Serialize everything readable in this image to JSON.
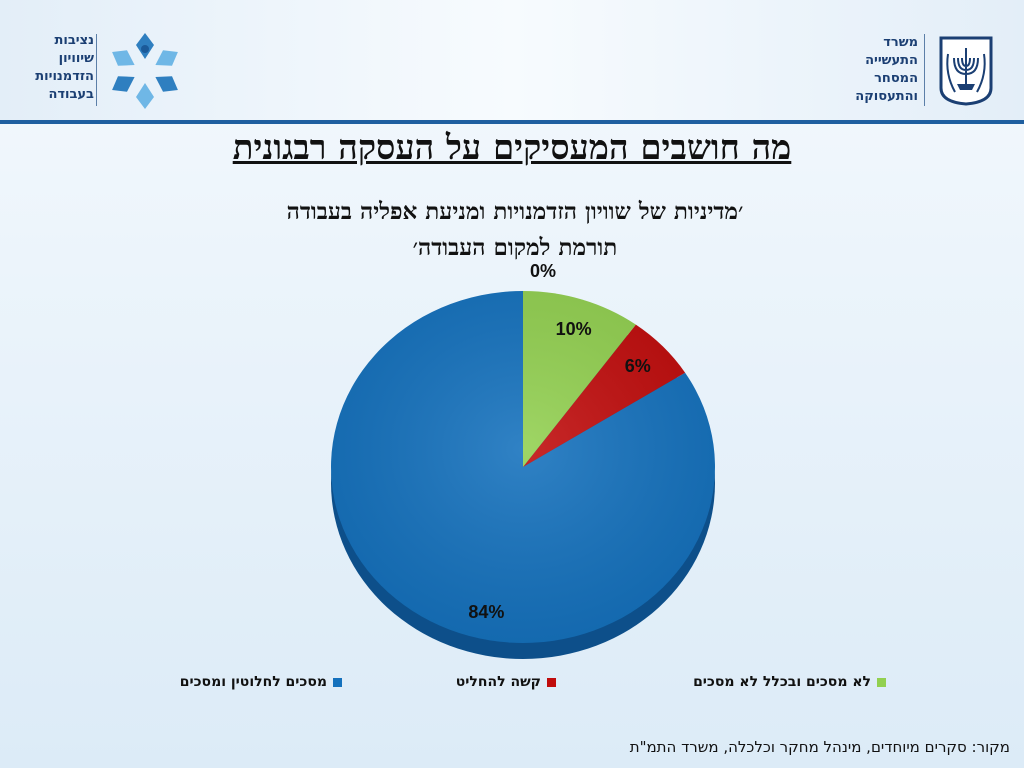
{
  "header": {
    "ministry_lines": [
      "משרד",
      "התעשייה",
      "המסחר",
      "והתעסוקה"
    ],
    "commission_lines": [
      "נציבות",
      "שיוויון",
      "הזדמנויות",
      "בעבודה"
    ]
  },
  "colors": {
    "accent": "#1f5fa0",
    "blue": "#1471bd",
    "red": "#c00c0c",
    "green": "#92d050"
  },
  "chart_data": {
    "type": "pie",
    "title": "מה חושבים המעסיקים על העסקה רבגונית",
    "subtitle_lines": [
      "׳מדיניות של שוויון הזדמנויות ומניעת אפליה בעבודה",
      "תורמת למקום העבודה׳"
    ],
    "slices": [
      {
        "name": "מסכים לחלוטין ומסכים",
        "value": 84,
        "label": "84%",
        "color": "#1471bd"
      },
      {
        "name": "קשה להחליט",
        "value": 6,
        "label": "6%",
        "color": "#c00c0c"
      },
      {
        "name": "לא מסכים ובכלל לא מסכים",
        "value": 10,
        "label": "10%",
        "color": "#92d050"
      },
      {
        "name": "",
        "value": 0,
        "label": "0%",
        "color": "#1471bd"
      }
    ],
    "legend": [
      {
        "name": "מסכים לחלוטין ומסכים",
        "color": "#1471bd"
      },
      {
        "name": "קשה להחליט",
        "color": "#c00c0c"
      },
      {
        "name": "לא מסכים ובכלל לא מסכים",
        "color": "#92d050"
      }
    ],
    "legend_position": "bottom"
  },
  "source": "מקור: סקרים מיוחדים, מינהל מחקר וכלכלה, משרד התמ\"ת"
}
